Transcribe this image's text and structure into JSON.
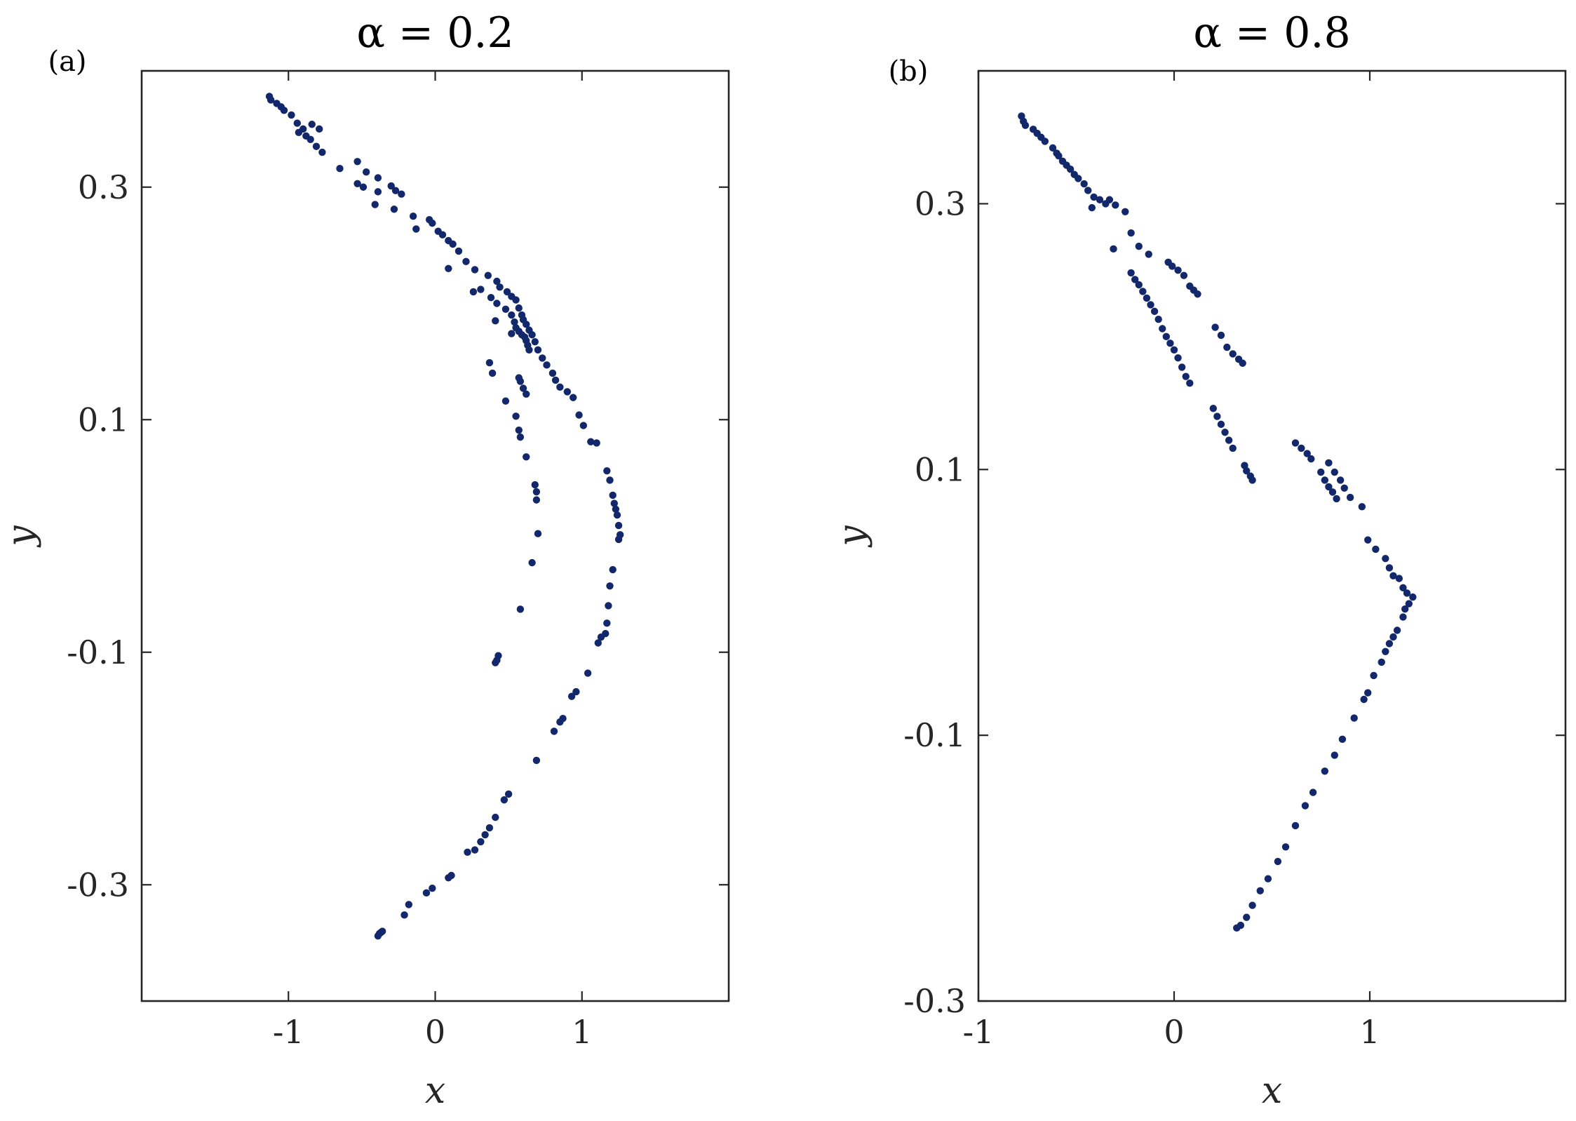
{
  "chart_data": [
    {
      "type": "scatter",
      "panel_label": "(a)",
      "title": "α = 0.2",
      "xlabel": "x",
      "ylabel": "y",
      "xlim": [
        -2,
        2
      ],
      "ylim": [
        -0.4,
        0.4
      ],
      "xticks": [
        -1,
        0,
        1
      ],
      "xtick_labels": [
        "-1",
        "0",
        "1"
      ],
      "yticks": [
        -0.3,
        -0.1,
        0.1,
        0.3
      ],
      "ytick_labels": [
        "-0.3",
        "-0.1",
        "0.1",
        "0.3"
      ],
      "grid": false,
      "legend": "none",
      "marker_color": "#13276b",
      "series": [
        {
          "points": [
            [
              -1.13,
              0.378
            ],
            [
              -1.12,
              0.375
            ],
            [
              -1.08,
              0.372
            ],
            [
              -1.05,
              0.369
            ],
            [
              -1.03,
              0.366
            ],
            [
              -0.98,
              0.362
            ],
            [
              -0.94,
              0.355
            ],
            [
              -0.9,
              0.35
            ],
            [
              -0.84,
              0.354
            ],
            [
              -0.79,
              0.35
            ],
            [
              -0.93,
              0.347
            ],
            [
              -0.88,
              0.344
            ],
            [
              -0.85,
              0.341
            ],
            [
              -0.81,
              0.335
            ],
            [
              -0.77,
              0.33
            ],
            [
              -0.65,
              0.316
            ],
            [
              -0.53,
              0.322
            ],
            [
              -0.47,
              0.313
            ],
            [
              -0.39,
              0.308
            ],
            [
              -0.3,
              0.301
            ],
            [
              -0.27,
              0.297
            ],
            [
              -0.23,
              0.294
            ],
            [
              -0.53,
              0.303
            ],
            [
              -0.49,
              0.3
            ],
            [
              -0.39,
              0.296
            ],
            [
              -0.41,
              0.285
            ],
            [
              -0.04,
              0.272
            ],
            [
              -0.02,
              0.269
            ],
            [
              0.02,
              0.262
            ],
            [
              0.05,
              0.259
            ],
            [
              0.09,
              0.254
            ],
            [
              0.12,
              0.251
            ],
            [
              0.16,
              0.245
            ],
            [
              0.21,
              0.236
            ],
            [
              0.27,
              0.229
            ],
            [
              0.36,
              0.224
            ],
            [
              0.42,
              0.219
            ],
            [
              0.44,
              0.214
            ],
            [
              0.49,
              0.21
            ],
            [
              0.52,
              0.206
            ],
            [
              0.55,
              0.203
            ],
            [
              0.57,
              0.196
            ],
            [
              0.59,
              0.19
            ],
            [
              0.6,
              0.186
            ],
            [
              0.62,
              0.182
            ],
            [
              0.64,
              0.177
            ],
            [
              0.66,
              0.173
            ],
            [
              0.68,
              0.167
            ],
            [
              0.7,
              0.16
            ],
            [
              0.73,
              0.153
            ],
            [
              0.76,
              0.147
            ],
            [
              0.8,
              0.14
            ],
            [
              0.82,
              0.134
            ],
            [
              0.85,
              0.128
            ],
            [
              0.9,
              0.124
            ],
            [
              0.94,
              0.119
            ],
            [
              0.98,
              0.104
            ],
            [
              1.01,
              0.095
            ],
            [
              1.06,
              0.081
            ],
            [
              1.1,
              0.08
            ],
            [
              -0.28,
              0.281
            ],
            [
              -0.15,
              0.275
            ],
            [
              -0.13,
              0.264
            ],
            [
              0.09,
              0.23
            ],
            [
              0.26,
              0.21
            ],
            [
              0.31,
              0.212
            ],
            [
              0.38,
              0.205
            ],
            [
              0.42,
              0.2
            ],
            [
              0.48,
              0.195
            ],
            [
              0.52,
              0.19
            ],
            [
              0.54,
              0.184
            ],
            [
              0.55,
              0.179
            ],
            [
              0.57,
              0.176
            ],
            [
              0.59,
              0.173
            ],
            [
              0.61,
              0.171
            ],
            [
              0.62,
              0.168
            ],
            [
              0.63,
              0.164
            ],
            [
              0.64,
              0.16
            ],
            [
              0.41,
              0.185
            ],
            [
              0.52,
              0.174
            ],
            [
              0.37,
              0.149
            ],
            [
              0.39,
              0.14
            ],
            [
              0.57,
              0.136
            ],
            [
              0.58,
              0.133
            ],
            [
              0.6,
              0.127
            ],
            [
              0.62,
              0.122
            ],
            [
              0.48,
              0.116
            ],
            [
              0.55,
              0.103
            ],
            [
              0.57,
              0.091
            ],
            [
              0.58,
              0.085
            ],
            [
              0.62,
              0.068
            ],
            [
              0.68,
              0.044
            ],
            [
              0.69,
              0.038
            ],
            [
              0.69,
              0.031
            ],
            [
              0.7,
              0.002
            ],
            [
              0.66,
              -0.023
            ],
            [
              0.58,
              -0.063
            ],
            [
              0.41,
              -0.109
            ],
            [
              0.42,
              -0.107
            ],
            [
              0.43,
              -0.103
            ],
            [
              1.17,
              0.056
            ],
            [
              1.19,
              0.048
            ],
            [
              1.21,
              0.035
            ],
            [
              1.22,
              0.028
            ],
            [
              1.23,
              0.023
            ],
            [
              1.24,
              0.018
            ],
            [
              1.25,
              0.009
            ],
            [
              1.26,
              0.001
            ],
            [
              1.25,
              -0.003
            ],
            [
              1.21,
              -0.029
            ],
            [
              1.19,
              -0.043
            ],
            [
              1.18,
              -0.06
            ],
            [
              1.17,
              -0.075
            ],
            [
              1.16,
              -0.084
            ],
            [
              1.13,
              -0.087
            ],
            [
              1.11,
              -0.092
            ],
            [
              1.04,
              -0.118
            ],
            [
              0.96,
              -0.134
            ],
            [
              0.93,
              -0.138
            ],
            [
              0.85,
              -0.16
            ],
            [
              0.87,
              -0.157
            ],
            [
              0.81,
              -0.168
            ],
            [
              0.69,
              -0.193
            ],
            [
              0.5,
              -0.222
            ],
            [
              0.47,
              -0.227
            ],
            [
              0.41,
              -0.242
            ],
            [
              0.37,
              -0.251
            ],
            [
              0.34,
              -0.257
            ],
            [
              0.31,
              -0.263
            ],
            [
              0.27,
              -0.27
            ],
            [
              0.22,
              -0.272
            ],
            [
              0.11,
              -0.292
            ],
            [
              0.09,
              -0.294
            ],
            [
              -0.02,
              -0.303
            ],
            [
              -0.06,
              -0.307
            ],
            [
              -0.18,
              -0.317
            ],
            [
              -0.21,
              -0.326
            ],
            [
              -0.36,
              -0.34
            ],
            [
              -0.37,
              -0.341
            ],
            [
              -0.38,
              -0.342
            ],
            [
              -0.39,
              -0.344
            ]
          ]
        }
      ]
    },
    {
      "type": "scatter",
      "panel_label": "(b)",
      "title": "α = 0.8",
      "xlabel": "x",
      "ylabel": "y",
      "xlim": [
        -1,
        2
      ],
      "ylim": [
        -0.3,
        0.4
      ],
      "xticks": [
        -1,
        0,
        1
      ],
      "xtick_labels": [
        "-1",
        "0",
        "1"
      ],
      "yticks": [
        -0.3,
        -0.1,
        0.1,
        0.3
      ],
      "ytick_labels": [
        "-0.3",
        "-0.1",
        "0.1",
        "0.3"
      ],
      "grid": false,
      "legend": "none",
      "marker_color": "#13276b",
      "series": [
        {
          "points": [
            [
              -0.78,
              0.366
            ],
            [
              -0.77,
              0.362
            ],
            [
              -0.76,
              0.359
            ],
            [
              -0.72,
              0.356
            ],
            [
              -0.7,
              0.353
            ],
            [
              -0.68,
              0.35
            ],
            [
              -0.66,
              0.347
            ],
            [
              -0.62,
              0.342
            ],
            [
              -0.6,
              0.338
            ],
            [
              -0.59,
              0.336
            ],
            [
              -0.57,
              0.332
            ],
            [
              -0.55,
              0.329
            ],
            [
              -0.53,
              0.326
            ],
            [
              -0.51,
              0.322
            ],
            [
              -0.49,
              0.319
            ],
            [
              -0.46,
              0.315
            ],
            [
              -0.44,
              0.31
            ],
            [
              -0.41,
              0.305
            ],
            [
              -0.38,
              0.303
            ],
            [
              -0.35,
              0.3
            ],
            [
              -0.33,
              0.303
            ],
            [
              -0.3,
              0.299
            ],
            [
              -0.25,
              0.294
            ],
            [
              -0.42,
              0.297
            ],
            [
              -0.31,
              0.266
            ],
            [
              -0.22,
              0.278
            ],
            [
              -0.18,
              0.268
            ],
            [
              -0.13,
              0.262
            ],
            [
              -0.03,
              0.256
            ],
            [
              -0.01,
              0.253
            ],
            [
              0.02,
              0.25
            ],
            [
              0.05,
              0.246
            ],
            [
              0.08,
              0.238
            ],
            [
              0.1,
              0.235
            ],
            [
              0.12,
              0.232
            ],
            [
              -0.22,
              0.248
            ],
            [
              -0.2,
              0.243
            ],
            [
              -0.18,
              0.239
            ],
            [
              -0.16,
              0.234
            ],
            [
              -0.14,
              0.229
            ],
            [
              -0.12,
              0.224
            ],
            [
              -0.1,
              0.219
            ],
            [
              -0.08,
              0.213
            ],
            [
              -0.06,
              0.206
            ],
            [
              -0.04,
              0.2
            ],
            [
              -0.02,
              0.195
            ],
            [
              0.0,
              0.19
            ],
            [
              0.02,
              0.184
            ],
            [
              0.04,
              0.177
            ],
            [
              0.06,
              0.17
            ],
            [
              0.08,
              0.165
            ],
            [
              0.21,
              0.207
            ],
            [
              0.24,
              0.201
            ],
            [
              0.27,
              0.192
            ],
            [
              0.3,
              0.187
            ],
            [
              0.33,
              0.183
            ],
            [
              0.35,
              0.18
            ],
            [
              0.2,
              0.146
            ],
            [
              0.22,
              0.14
            ],
            [
              0.24,
              0.134
            ],
            [
              0.26,
              0.128
            ],
            [
              0.28,
              0.122
            ],
            [
              0.3,
              0.116
            ],
            [
              0.36,
              0.103
            ],
            [
              0.37,
              0.099
            ],
            [
              0.39,
              0.095
            ],
            [
              0.4,
              0.092
            ],
            [
              0.62,
              0.12
            ],
            [
              0.65,
              0.116
            ],
            [
              0.68,
              0.112
            ],
            [
              0.7,
              0.108
            ],
            [
              0.75,
              0.098
            ],
            [
              0.77,
              0.092
            ],
            [
              0.79,
              0.087
            ],
            [
              0.81,
              0.083
            ],
            [
              0.83,
              0.078
            ],
            [
              0.79,
              0.105
            ],
            [
              0.82,
              0.098
            ],
            [
              0.85,
              0.092
            ],
            [
              0.87,
              0.086
            ],
            [
              0.9,
              0.079
            ],
            [
              0.96,
              0.072
            ],
            [
              0.99,
              0.047
            ],
            [
              1.03,
              0.04
            ],
            [
              1.08,
              0.033
            ],
            [
              1.1,
              0.026
            ],
            [
              1.12,
              0.02
            ],
            [
              1.15,
              0.018
            ],
            [
              1.17,
              0.011
            ],
            [
              1.19,
              0.007
            ],
            [
              1.22,
              0.004
            ],
            [
              1.2,
              -0.001
            ],
            [
              1.18,
              -0.005
            ],
            [
              1.17,
              -0.011
            ],
            [
              1.14,
              -0.021
            ],
            [
              1.12,
              -0.026
            ],
            [
              1.1,
              -0.031
            ],
            [
              1.08,
              -0.037
            ],
            [
              1.06,
              -0.045
            ],
            [
              1.02,
              -0.055
            ],
            [
              0.99,
              -0.068
            ],
            [
              0.97,
              -0.073
            ],
            [
              0.92,
              -0.087
            ],
            [
              0.86,
              -0.103
            ],
            [
              0.82,
              -0.115
            ],
            [
              0.77,
              -0.127
            ],
            [
              0.71,
              -0.143
            ],
            [
              0.67,
              -0.153
            ],
            [
              0.62,
              -0.168
            ],
            [
              0.57,
              -0.184
            ],
            [
              0.53,
              -0.195
            ],
            [
              0.48,
              -0.208
            ],
            [
              0.44,
              -0.217
            ],
            [
              0.4,
              -0.228
            ],
            [
              0.37,
              -0.237
            ],
            [
              0.34,
              -0.243
            ],
            [
              0.32,
              -0.245
            ]
          ]
        }
      ]
    }
  ]
}
